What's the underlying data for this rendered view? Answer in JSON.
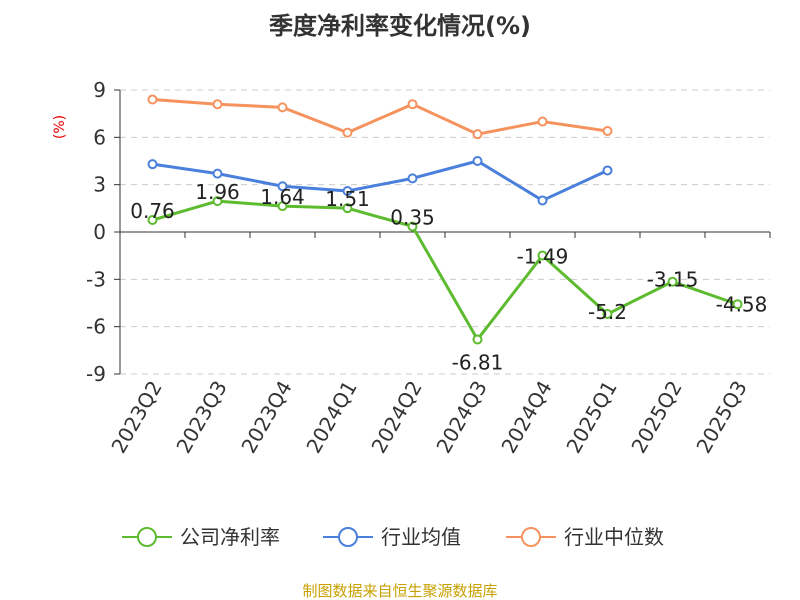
{
  "chart_data": {
    "type": "line",
    "title": "季度净利率变化情况(%)",
    "ylabel": "(%)",
    "categories": [
      "2023Q2",
      "2023Q3",
      "2023Q4",
      "2024Q1",
      "2024Q2",
      "2024Q3",
      "2024Q4",
      "2025Q1",
      "2025Q2",
      "2025Q3"
    ],
    "y_ticks": [
      "9",
      "6",
      "3",
      "0",
      "-3",
      "-6",
      "-9"
    ],
    "ylim": [
      -9,
      9
    ],
    "grid": true,
    "legend_position": "bottom",
    "series": [
      {
        "name": "公司净利率",
        "color": "#5dbb2f",
        "values": [
          0.76,
          1.96,
          1.64,
          1.51,
          0.35,
          -6.81,
          -1.49,
          -5.2,
          -3.15,
          -4.58
        ],
        "labels": [
          "0.76",
          "1.96",
          "1.64",
          "1.51",
          "0.35",
          "-6.81",
          "-1.49",
          "-5.2",
          "-3.15",
          "-4.58"
        ]
      },
      {
        "name": "行业均值",
        "color": "#4a7fdc",
        "values": [
          4.3,
          3.7,
          2.9,
          2.6,
          3.4,
          4.5,
          2.0,
          3.9,
          null,
          null
        ]
      },
      {
        "name": "行业中位数",
        "color": "#f5925e",
        "values": [
          8.4,
          8.1,
          7.9,
          6.3,
          8.1,
          6.2,
          7.0,
          6.4,
          null,
          null
        ]
      }
    ]
  },
  "footer": {
    "source": "制图数据来自恒生聚源数据库"
  }
}
